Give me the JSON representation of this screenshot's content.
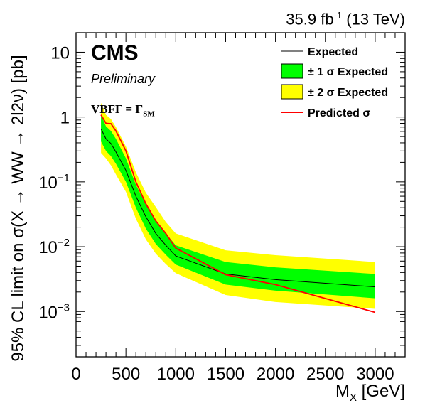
{
  "header": {
    "lumi_value": "35.9 fb",
    "lumi_exp": "-1",
    "lumi_energy": " (13 TeV)"
  },
  "annotations": {
    "experiment": "CMS",
    "status": "Preliminary",
    "model": "VBFΓ = Γ",
    "model_sub": "SM"
  },
  "axes": {
    "xlabel": "M",
    "xlabel_sub": "X",
    "xlabel_unit": " [GeV]",
    "ylabel": "95% CL limit on σ(X → WW → 2l2ν) [pb]"
  },
  "legend": {
    "expected": "Expected",
    "one_sigma": "± 1 σ Expected",
    "two_sigma": "± 2 σ Expected",
    "predicted": "Predicted σ"
  },
  "chart_data": {
    "type": "line",
    "title": "",
    "xlabel": "M_X [GeV]",
    "ylabel": "95% CL limit on σ(X → WW → 2l2ν) [pb]",
    "xlim": [
      0,
      3300
    ],
    "ylim": [
      0.0002,
      20
    ],
    "yscale": "log",
    "xticks": [
      0,
      500,
      1000,
      1500,
      2000,
      2500,
      3000
    ],
    "xtick_labels": [
      "0",
      "500",
      "1000",
      "1500",
      "2000",
      "2500",
      "3000"
    ],
    "yticks": [
      0.001,
      0.01,
      0.1,
      1,
      10
    ],
    "ytick_labels": [
      {
        "base": "10",
        "exp": "−3"
      },
      {
        "base": "10",
        "exp": "−2"
      },
      {
        "base": "10",
        "exp": "−1"
      },
      {
        "base": "1",
        "exp": ""
      },
      {
        "base": "10",
        "exp": ""
      }
    ],
    "legend_position": "top-right",
    "grid": false,
    "colors": {
      "expected": "#000000",
      "one_sigma": "#00ff00",
      "two_sigma": "#ffff00",
      "predicted": "#ff0000"
    },
    "x": [
      250,
      300,
      350,
      400,
      500,
      600,
      700,
      800,
      900,
      1000,
      1500,
      2000,
      3000
    ],
    "series": [
      {
        "name": "Expected",
        "values": [
          0.66,
          0.46,
          0.39,
          0.29,
          0.15,
          0.06,
          0.029,
          0.016,
          0.0105,
          0.0072,
          0.0038,
          0.0031,
          0.0024
        ]
      },
      {
        "name": "± 1 σ Expected",
        "low": [
          0.42,
          0.3,
          0.25,
          0.19,
          0.1,
          0.04,
          0.019,
          0.011,
          0.0075,
          0.0053,
          0.0026,
          0.0021,
          0.0016
        ],
        "high": [
          1.08,
          0.72,
          0.61,
          0.46,
          0.23,
          0.09,
          0.045,
          0.026,
          0.016,
          0.0105,
          0.0058,
          0.0048,
          0.0038
        ]
      },
      {
        "name": "± 2 σ Expected",
        "low": [
          0.28,
          0.23,
          0.18,
          0.13,
          0.07,
          0.027,
          0.013,
          0.0078,
          0.0054,
          0.0039,
          0.0018,
          0.0014,
          0.0011
        ],
        "high": [
          1.65,
          1.08,
          0.93,
          0.7,
          0.35,
          0.14,
          0.068,
          0.041,
          0.024,
          0.016,
          0.0088,
          0.0074,
          0.0058
        ]
      },
      {
        "name": "Predicted σ",
        "values": [
          1.08,
          0.8,
          0.79,
          0.61,
          0.3,
          0.1,
          0.046,
          0.025,
          0.016,
          0.0095,
          0.0037,
          0.0026,
          0.00097
        ]
      }
    ]
  }
}
